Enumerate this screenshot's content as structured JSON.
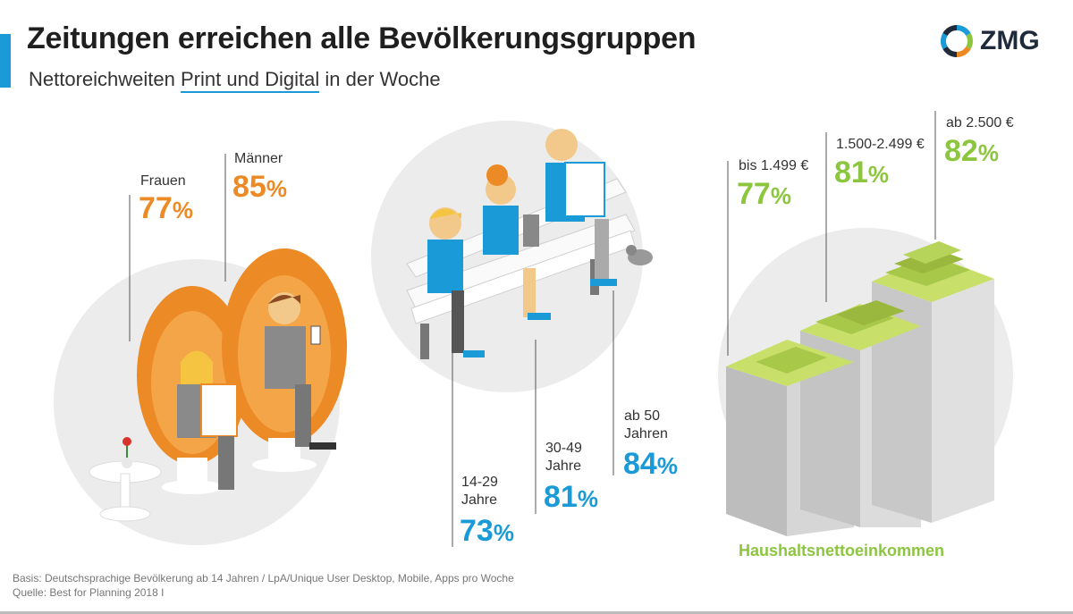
{
  "header": {
    "title": "Zeitungen erreichen alle Bevölkerungsgruppen",
    "subtitle_pre": "Nettoreichweiten ",
    "subtitle_highlight": "Print und Digital",
    "subtitle_post": " in der Woche",
    "logo_text": "ZMG"
  },
  "colors": {
    "gender": "#ec8a25",
    "age": "#1a9ad7",
    "income": "#8cc63f",
    "accent": "#1a9ad7"
  },
  "icons": [
    "zmg-logo-icon",
    "egg-chair-icon",
    "park-bench-icon",
    "money-stack-icon",
    "pigeon-icon",
    "flower-icon"
  ],
  "chart_data": [
    {
      "type": "bar",
      "group": "gender",
      "categories": [
        "Frauen",
        "Männer"
      ],
      "values": [
        77,
        85
      ],
      "value_labels": [
        "77",
        "85"
      ]
    },
    {
      "type": "bar",
      "group": "age",
      "categories": [
        "14-29 Jahre",
        "30-49 Jahre",
        "ab 50 Jahren"
      ],
      "labels_lines": [
        [
          "14-29",
          "Jahre"
        ],
        [
          "30-49",
          "Jahre"
        ],
        [
          "ab 50",
          "Jahren"
        ]
      ],
      "values": [
        73,
        81,
        84
      ],
      "value_labels": [
        "73",
        "81",
        "84"
      ]
    },
    {
      "type": "bar",
      "group": "income",
      "xlabel": "Haushaltsnettoeinkommen",
      "categories": [
        "bis 1.499 €",
        "1.500-2.499 €",
        "ab 2.500 €"
      ],
      "values": [
        77,
        81,
        82
      ],
      "value_labels": [
        "77",
        "81",
        "82"
      ]
    }
  ],
  "percent_symbol": "%",
  "footnotes": {
    "basis": "Basis: Deutschsprachige Bevölkerung ab 14 Jahren / LpA/Unique User Desktop, Mobile, Apps pro Woche",
    "source": "Quelle: Best for Planning 2018 I"
  }
}
